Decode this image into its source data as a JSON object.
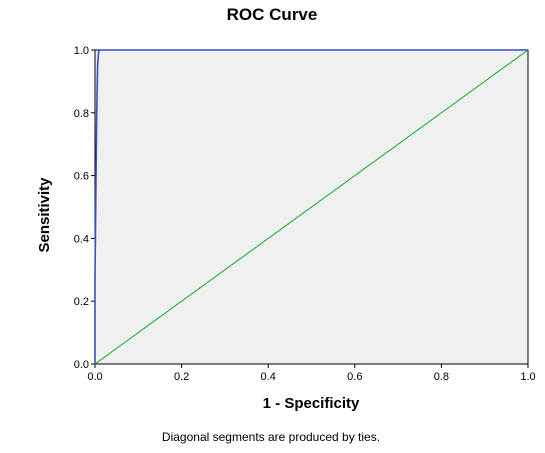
{
  "chart_data": {
    "type": "line",
    "title": "ROC Curve",
    "xlabel": "1 - Specificity",
    "ylabel": "Sensitivity",
    "xlim": [
      0,
      1
    ],
    "ylim": [
      0,
      1
    ],
    "x_ticks": [
      "0.0",
      "0.2",
      "0.4",
      "0.6",
      "0.8",
      "1.0"
    ],
    "y_ticks": [
      "0.0",
      "0.2",
      "0.4",
      "0.6",
      "0.8",
      "1.0"
    ],
    "grid": false,
    "plot_background": "#f0f0f0",
    "series": [
      {
        "color": "#3a4fc0",
        "x": [
          0.0,
          0.0,
          0.002,
          0.004,
          0.006,
          0.008,
          0.01,
          1.0
        ],
        "y": [
          0.0,
          0.27,
          0.55,
          0.8,
          0.95,
          0.99,
          1.0,
          1.0
        ]
      },
      {
        "color": "#2fb84a",
        "x": [
          0.0,
          1.0
        ],
        "y": [
          0.0,
          1.0
        ]
      }
    ],
    "footnote": "Diagonal segments are produced by ties."
  }
}
